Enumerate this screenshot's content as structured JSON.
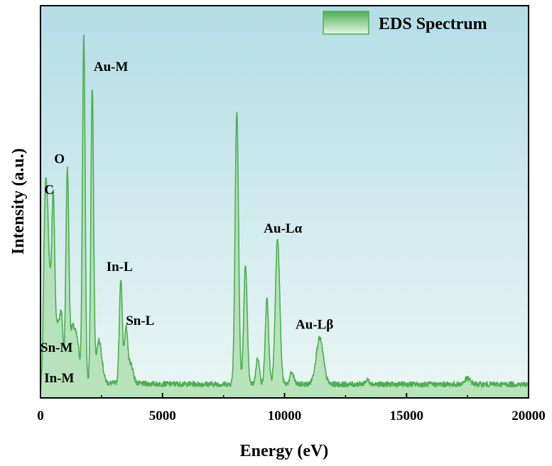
{
  "chart_data": {
    "type": "area",
    "xlabel": "Energy (eV)",
    "ylabel": "Intensity (a.u.)",
    "xlim": [
      0,
      20000
    ],
    "ylim": [
      0,
      100
    ],
    "x_ticks": [
      "0",
      "5000",
      "10000",
      "15000",
      "20000"
    ],
    "legend": {
      "label": "EDS Spectrum",
      "position": "top-right"
    },
    "colors": {
      "line": "#4caf50",
      "fill": "#a8dca8",
      "bg_top": "#b4dde6",
      "bg_bottom": "#eaf6f4"
    },
    "baseline": 1.5,
    "peaks": [
      {
        "x": 180,
        "y": 38,
        "w": 60
      },
      {
        "x": 277,
        "y": 33,
        "w": 60
      },
      {
        "x": 392,
        "y": 20,
        "w": 70
      },
      {
        "x": 525,
        "y": 45,
        "w": 60
      },
      {
        "x": 700,
        "y": 14,
        "w": 80
      },
      {
        "x": 860,
        "y": 16,
        "w": 70
      },
      {
        "x": 1100,
        "y": 54,
        "w": 60
      },
      {
        "x": 1300,
        "y": 13,
        "w": 100
      },
      {
        "x": 1500,
        "y": 10,
        "w": 100
      },
      {
        "x": 1775,
        "y": 90,
        "w": 55
      },
      {
        "x": 2120,
        "y": 76,
        "w": 55
      },
      {
        "x": 2400,
        "y": 11,
        "w": 120
      },
      {
        "x": 3290,
        "y": 27,
        "w": 60
      },
      {
        "x": 3500,
        "y": 14,
        "w": 70
      },
      {
        "x": 3700,
        "y": 5,
        "w": 100
      },
      {
        "x": 8045,
        "y": 71,
        "w": 70
      },
      {
        "x": 8400,
        "y": 31,
        "w": 70
      },
      {
        "x": 8900,
        "y": 7,
        "w": 70
      },
      {
        "x": 9280,
        "y": 22,
        "w": 70
      },
      {
        "x": 9715,
        "y": 38,
        "w": 90
      },
      {
        "x": 10300,
        "y": 3,
        "w": 80
      },
      {
        "x": 11440,
        "y": 12,
        "w": 150
      },
      {
        "x": 13400,
        "y": 1,
        "w": 100
      },
      {
        "x": 17500,
        "y": 1.5,
        "w": 120
      }
    ],
    "annotations": [
      {
        "text": "Au-M",
        "x": 2180,
        "y": 83
      },
      {
        "text": "O",
        "x": 560,
        "y": 59
      },
      {
        "text": "C",
        "x": 150,
        "y": 51
      },
      {
        "text": "In-L",
        "x": 2700,
        "y": 31
      },
      {
        "text": "Sn-L",
        "x": 3500,
        "y": 17
      },
      {
        "text": "Au-Lα",
        "x": 9150,
        "y": 41
      },
      {
        "text": "Au-Lβ",
        "x": 10450,
        "y": 16
      },
      {
        "text": "Sn-M",
        "x": 0,
        "y": 10
      },
      {
        "text": "In-M",
        "x": 150,
        "y": 2
      }
    ]
  }
}
